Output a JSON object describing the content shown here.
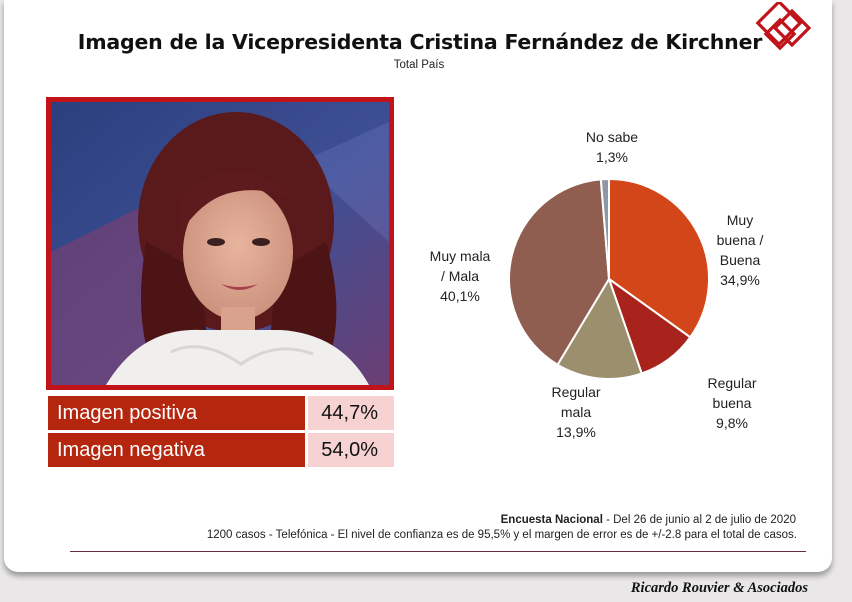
{
  "header": {
    "title": "Imagen de la Vicepresidenta Cristina Fernández de Kirchner",
    "subtitle": "Total País"
  },
  "summary": [
    {
      "label": "Imagen positiva",
      "value": "44,7%"
    },
    {
      "label": "Imagen negativa",
      "value": "54,0%"
    }
  ],
  "chart_data": {
    "type": "pie",
    "title": "",
    "slices": [
      {
        "name": "Muy buena / Buena",
        "value": 34.9,
        "label": "34,9%",
        "color": "#d3461a"
      },
      {
        "name": "Regular buena",
        "value": 9.8,
        "label": "9,8%",
        "color": "#a8231b"
      },
      {
        "name": "Regular mala",
        "value": 13.9,
        "label": "13,9%",
        "color": "#9c8f6d"
      },
      {
        "name": "Muy mala / Mala",
        "value": 40.1,
        "label": "40,1%",
        "color": "#8f5e50"
      },
      {
        "name": "No sabe",
        "value": 1.3,
        "label": "1,3%",
        "color": "#8e96a8"
      }
    ],
    "start": "12 o'clock, clockwise"
  },
  "pie_labels": {
    "no_sabe": [
      "No sabe",
      "1,3%"
    ],
    "muy_buena": [
      "Muy",
      "buena /",
      "Buena",
      "34,9%"
    ],
    "regular_buena": [
      "Regular",
      "buena",
      "9,8%"
    ],
    "regular_mala": [
      "Regular",
      "mala",
      "13,9%"
    ],
    "muy_mala": [
      "Muy mala",
      "/ Mala",
      "40,1%"
    ]
  },
  "footer": {
    "survey_name": "Encuesta Nacional",
    "survey_dates": " - Del 26 de junio al 2 de julio de 2020",
    "method": "1200 casos - Telefónica  - El nivel de confianza es de 95,5% y el margen de error es de +/-2.8 para el total de casos.",
    "brand": "Ricardo Rouvier & Asociados"
  },
  "colors": {
    "accent_red": "#c0141a",
    "label_bg": "#b5260f",
    "value_bg": "#f6d2d2"
  }
}
